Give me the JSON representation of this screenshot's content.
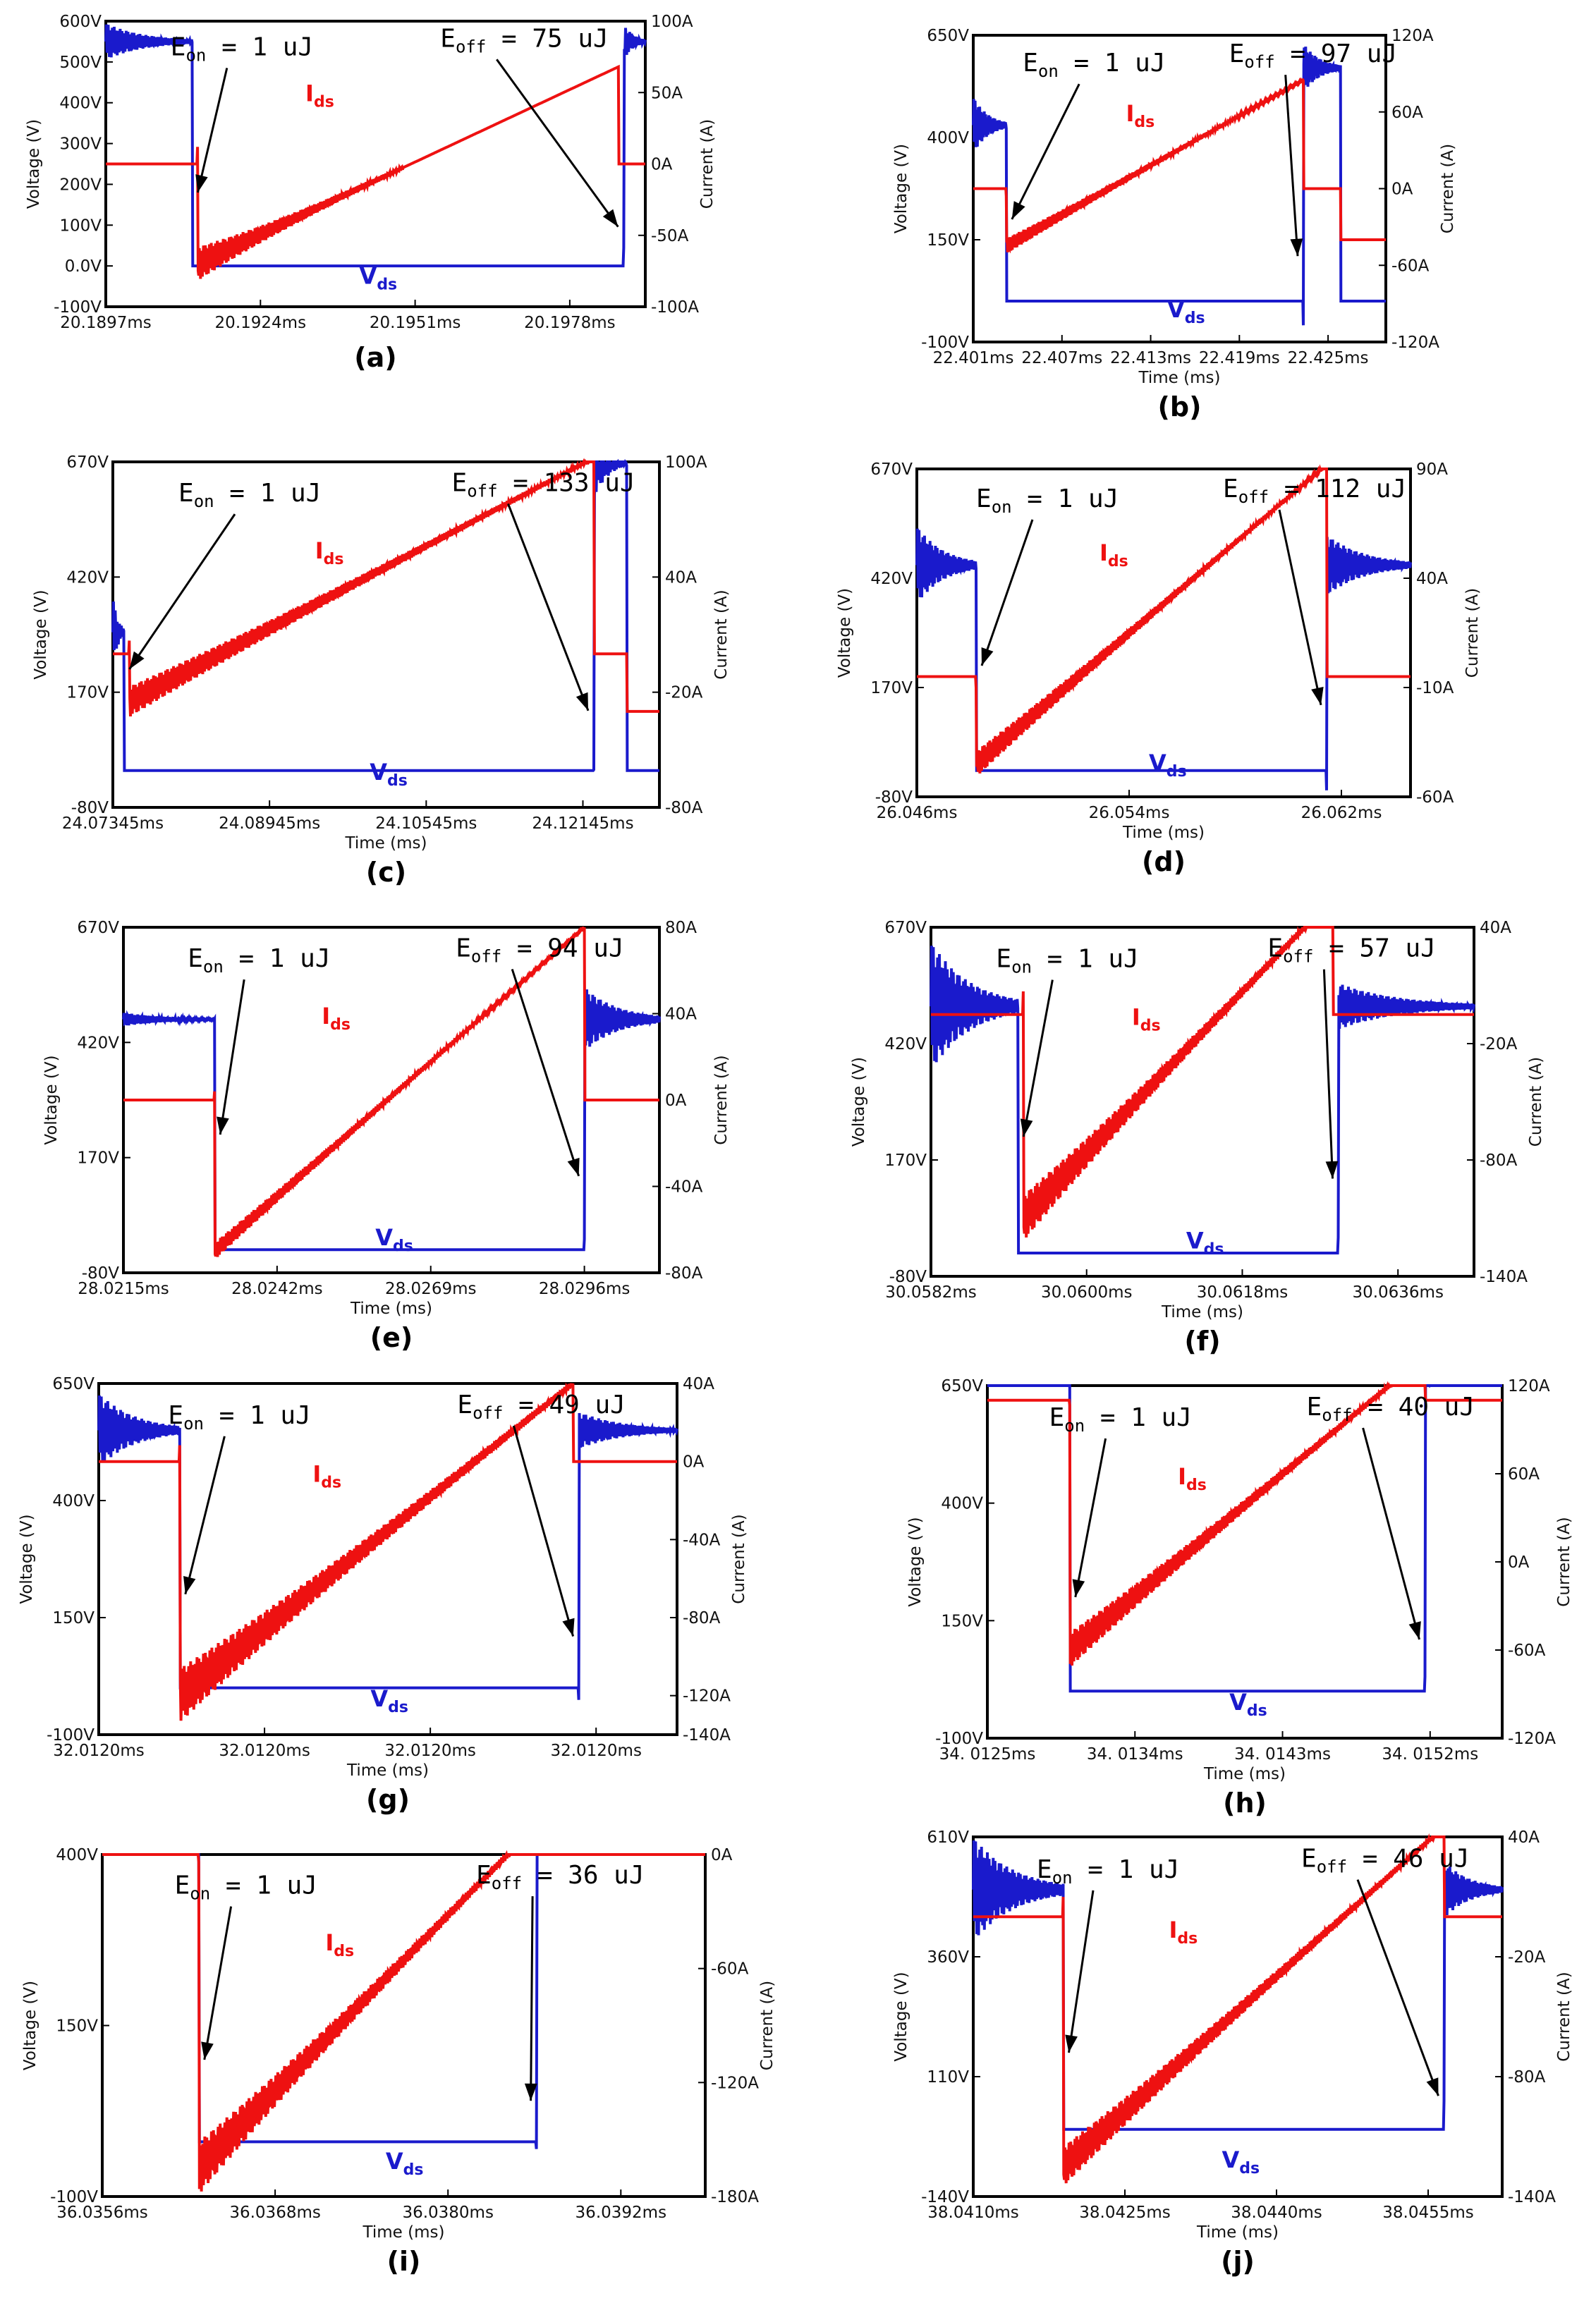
{
  "chart_data": [
    {
      "id": "a",
      "type": "line",
      "panel_label": "(a)",
      "xlabel": "",
      "ylabel": "Voltage (V)",
      "y2label": "Current (A)",
      "xticks": [
        "20.1897ms",
        "20.1924ms",
        "20.1951ms",
        "20.1978ms"
      ],
      "yticks": [
        "600V",
        "500V",
        "400V",
        "300V",
        "200V",
        "100V",
        "0.0V",
        "-100V"
      ],
      "y2ticks": [
        "100A",
        "50A",
        "0A",
        "-50A",
        "-100A"
      ],
      "eon": "1 uJ",
      "eoff": "75 uJ",
      "series": [
        {
          "name": "Vds",
          "color": "#1a1acc",
          "x": [
            0,
            0.16,
            0.16,
            0.96,
            0.96,
            1.0
          ],
          "y": [
            550,
            550,
            0,
            0,
            550,
            550
          ],
          "osc_zones": [
            [
              0,
              0.16,
              45
            ],
            [
              0.96,
              1.0,
              45
            ]
          ]
        },
        {
          "name": "Ids",
          "color": "#ee1111",
          "x": [
            0,
            0.17,
            0.17,
            0.95,
            0.95,
            1.0
          ],
          "y": [
            0,
            0,
            -70,
            68,
            0,
            0
          ],
          "osc_zones": [
            [
              0.17,
              0.55,
              12
            ]
          ]
        }
      ]
    },
    {
      "id": "b",
      "type": "line",
      "panel_label": "(b)",
      "xlabel": "Time (ms)",
      "ylabel": "Voltage (V)",
      "y2label": "Current (A)",
      "xticks": [
        "22.401ms",
        "22.407ms",
        "22.413ms",
        "22.419ms",
        "22.425ms"
      ],
      "yticks": [
        "650V",
        "400V",
        "150V",
        "-100V"
      ],
      "y2ticks": [
        "120A",
        "60A",
        "0A",
        "-60A",
        "-120A"
      ],
      "eon": "1 uJ",
      "eoff": "97 uJ",
      "series": [
        {
          "name": "Vds",
          "color": "#1a1acc",
          "x": [
            0,
            0.08,
            0.08,
            0.8,
            0.8,
            0.89,
            0.89,
            1.0
          ],
          "y": [
            430,
            430,
            0,
            0,
            570,
            570,
            0,
            0
          ],
          "osc_zones": [
            [
              0,
              0.08,
              70
            ],
            [
              0.8,
              0.89,
              60
            ]
          ]
        },
        {
          "name": "Ids",
          "color": "#ee1111",
          "x": [
            0,
            0.08,
            0.08,
            0.8,
            0.8,
            0.89,
            0.89,
            1.0
          ],
          "y": [
            0,
            0,
            -45,
            85,
            0,
            0,
            -40,
            -40
          ],
          "osc_zones": [
            [
              0.08,
              0.8,
              6
            ]
          ]
        }
      ]
    },
    {
      "id": "c",
      "type": "line",
      "panel_label": "(c)",
      "xlabel": "Time (ms)",
      "ylabel": "Voltage (V)",
      "y2label": "Current (A)",
      "xticks": [
        "24.07345ms",
        "24.08945ms",
        "24.10545ms",
        "24.12145ms"
      ],
      "yticks": [
        "670V",
        "420V",
        "170V",
        "-80V"
      ],
      "y2ticks": [
        "100A",
        "40A",
        "-20A",
        "-80A"
      ],
      "eon": "1 uJ",
      "eoff": "133 uJ",
      "series": [
        {
          "name": "Vds",
          "color": "#1a1acc",
          "x": [
            0,
            0.02,
            0.02,
            0.88,
            0.88,
            0.94,
            0.94,
            1.0
          ],
          "y": [
            300,
            300,
            0,
            0,
            670,
            670,
            0,
            0
          ],
          "osc_zones": [
            [
              0,
              0.02,
              80
            ],
            [
              0.88,
              0.94,
              80
            ]
          ]
        },
        {
          "name": "Ids",
          "color": "#ee1111",
          "x": [
            0,
            0.03,
            0.03,
            0.88,
            0.88,
            0.94,
            0.94,
            1.0
          ],
          "y": [
            0,
            0,
            -25,
            102,
            0,
            0,
            -30,
            -30
          ],
          "osc_zones": [
            [
              0.03,
              0.88,
              8
            ]
          ]
        }
      ]
    },
    {
      "id": "d",
      "type": "line",
      "panel_label": "(d)",
      "xlabel": "Time (ms)",
      "ylabel": "Voltage (V)",
      "y2label": "Current (A)",
      "xticks": [
        "26.046ms",
        "26.054ms",
        "26.062ms"
      ],
      "yticks": [
        "670V",
        "420V",
        "170V",
        "-80V"
      ],
      "y2ticks": [
        "90A",
        "40A",
        "-10A",
        "-60A"
      ],
      "eon": "1 uJ",
      "eoff": "112 uJ",
      "series": [
        {
          "name": "Vds",
          "color": "#1a1acc",
          "x": [
            0,
            0.12,
            0.12,
            0.83,
            0.83,
            1.0
          ],
          "y": [
            450,
            450,
            -20,
            -20,
            450,
            450
          ],
          "osc_zones": [
            [
              0,
              0.12,
              90
            ],
            [
              0.83,
              1.0,
              70
            ]
          ]
        },
        {
          "name": "Ids",
          "color": "#ee1111",
          "x": [
            0,
            0.12,
            0.12,
            0.83,
            0.83,
            1.0
          ],
          "y": [
            -5,
            -5,
            -45,
            92,
            -5,
            -5
          ],
          "osc_zones": [
            [
              0.12,
              0.83,
              6
            ]
          ]
        }
      ]
    },
    {
      "id": "e",
      "type": "line",
      "panel_label": "(e)",
      "xlabel": "Time (ms)",
      "ylabel": "Voltage (V)",
      "y2label": "Current (A)",
      "xticks": [
        "28.0215ms",
        "28.0242ms",
        "28.0269ms",
        "28.0296ms"
      ],
      "yticks": [
        "670V",
        "420V",
        "170V",
        "-80V"
      ],
      "y2ticks": [
        "80A",
        "40A",
        "0A",
        "-40A",
        "-80A"
      ],
      "eon": "1 uJ",
      "eoff": "94 uJ",
      "series": [
        {
          "name": "Vds",
          "color": "#1a1acc",
          "x": [
            0,
            0.17,
            0.17,
            0.86,
            0.86,
            1.0
          ],
          "y": [
            470,
            470,
            -30,
            -30,
            470,
            470
          ],
          "osc_zones": [
            [
              0,
              0.17,
              15
            ],
            [
              0.86,
              1.0,
              70
            ]
          ]
        },
        {
          "name": "Ids",
          "color": "#ee1111",
          "x": [
            0,
            0.17,
            0.17,
            0.86,
            0.86,
            1.0
          ],
          "y": [
            0,
            0,
            -70,
            80,
            0,
            0
          ],
          "osc_zones": [
            [
              0.17,
              0.86,
              4
            ]
          ]
        }
      ]
    },
    {
      "id": "f",
      "type": "line",
      "panel_label": "(f)",
      "xlabel": "Time (ms)",
      "ylabel": "Voltage (V)",
      "y2label": "Current (A)",
      "xticks": [
        "30.0582ms",
        "30.0600ms",
        "30.0618ms",
        "30.0636ms"
      ],
      "yticks": [
        "670V",
        "420V",
        "170V",
        "-80V"
      ],
      "y2ticks": [
        "40A",
        "-20A",
        "-80A",
        "-140A"
      ],
      "eon": "1 uJ",
      "eoff": "57 uJ",
      "series": [
        {
          "name": "Vds",
          "color": "#1a1acc",
          "x": [
            0,
            0.16,
            0.16,
            0.75,
            0.75,
            1.0
          ],
          "y": [
            500,
            500,
            -30,
            -30,
            500,
            500
          ],
          "osc_zones": [
            [
              0,
              0.16,
              140
            ],
            [
              0.75,
              1.0,
              50
            ]
          ]
        },
        {
          "name": "Ids",
          "color": "#ee1111",
          "x": [
            0,
            0.17,
            0.17,
            0.74,
            0.74,
            1.0
          ],
          "y": [
            -5,
            -5,
            -110,
            55,
            -5,
            -5
          ],
          "osc_zones": [
            [
              0.17,
              0.74,
              12
            ]
          ]
        }
      ]
    },
    {
      "id": "g",
      "type": "line",
      "panel_label": "(g)",
      "xlabel": "Time (ms)",
      "ylabel": "Voltage (V)",
      "y2label": "Current (A)",
      "xticks": [
        "32.0120ms",
        "32.0120ms",
        "32.0120ms",
        "32.0120ms"
      ],
      "yticks": [
        "650V",
        "400V",
        "150V",
        "-100V"
      ],
      "y2ticks": [
        "40A",
        "0A",
        "-40A",
        "-80A",
        "-120A",
        "-140A"
      ],
      "eon": "1 uJ",
      "eoff": "49 uJ",
      "series": [
        {
          "name": "Vds",
          "color": "#1a1acc",
          "x": [
            0,
            0.14,
            0.14,
            0.83,
            0.83,
            1.0
          ],
          "y": [
            550,
            550,
            0,
            0,
            550,
            550
          ],
          "osc_zones": [
            [
              0,
              0.14,
              80
            ],
            [
              0.83,
              1.0,
              40
            ]
          ]
        },
        {
          "name": "Ids",
          "color": "#ee1111",
          "x": [
            0,
            0.14,
            0.14,
            0.82,
            0.82,
            1.0
          ],
          "y": [
            0,
            0,
            -120,
            40,
            0,
            0
          ],
          "osc_zones": [
            [
              0.14,
              0.82,
              14
            ]
          ]
        }
      ]
    },
    {
      "id": "h",
      "type": "line",
      "panel_label": "(h)",
      "xlabel": "Time (ms)",
      "ylabel": "Voltage (V)",
      "y2label": "Current (A)",
      "xticks": [
        "34. 0125ms",
        "34. 0134ms",
        "34. 0143ms",
        "34. 0152ms"
      ],
      "yticks": [
        "650V",
        "400V",
        "150V",
        "-100V"
      ],
      "y2ticks": [
        "120A",
        "60A",
        "0A",
        "-60A",
        "-120A"
      ],
      "eon": "1 uJ",
      "eoff": "40 uJ",
      "series": [
        {
          "name": "Vds",
          "color": "#1a1acc",
          "x": [
            0,
            0.16,
            0.16,
            0.85,
            0.85,
            1.0
          ],
          "y": [
            680,
            680,
            0,
            0,
            680,
            680
          ],
          "osc_zones": [
            [
              0,
              0.16,
              20
            ],
            [
              0.85,
              1.0,
              35
            ]
          ]
        },
        {
          "name": "Ids",
          "color": "#ee1111",
          "x": [
            0,
            0.16,
            0.16,
            0.85,
            0.85,
            1.0
          ],
          "y": [
            110,
            110,
            -60,
            140,
            110,
            110
          ],
          "osc_zones": [
            [
              0.16,
              0.85,
              12
            ]
          ]
        }
      ]
    },
    {
      "id": "i",
      "type": "line",
      "panel_label": "(i)",
      "xlabel": "Time (ms)",
      "ylabel": "Voltage (V)",
      "y2label": "Current (A)",
      "xticks": [
        "36.0356ms",
        "36.0368ms",
        "36.0380ms",
        "36.0392ms"
      ],
      "yticks": [
        "400V",
        "150V",
        "-100V"
      ],
      "y2ticks": [
        "0A",
        "-60A",
        "-120A",
        "-180A"
      ],
      "eon": "1 uJ",
      "eoff": "36 uJ",
      "series": [
        {
          "name": "Vds",
          "color": "#1a1acc",
          "x": [
            0,
            0.16,
            0.16,
            0.72,
            0.72,
            1.0
          ],
          "y": [
            570,
            570,
            -20,
            -20,
            570,
            570
          ],
          "osc_zones": [
            [
              0,
              0.16,
              40
            ],
            [
              0.72,
              1.0,
              35
            ]
          ]
        },
        {
          "name": "Ids",
          "color": "#ee1111",
          "x": [
            0,
            0.16,
            0.16,
            0.71,
            0.71,
            1.0
          ],
          "y": [
            0,
            0,
            -165,
            12,
            0,
            0
          ],
          "osc_zones": [
            [
              0.16,
              0.71,
              14
            ]
          ]
        }
      ]
    },
    {
      "id": "j",
      "type": "line",
      "panel_label": "(j)",
      "xlabel": "Time (ms)",
      "ylabel": "Voltage (V)",
      "y2label": "Current (A)",
      "xticks": [
        "38.0410ms",
        "38.0425ms",
        "38.0440ms",
        "38.0455ms"
      ],
      "yticks": [
        "610V",
        "360V",
        "110V",
        "-140V"
      ],
      "y2ticks": [
        "40A",
        "-20A",
        "-80A",
        "-140A"
      ],
      "eon": "1 uJ",
      "eoff": "46 uJ",
      "series": [
        {
          "name": "Vds",
          "color": "#1a1acc",
          "x": [
            0,
            0.17,
            0.17,
            0.89,
            0.89,
            1.0
          ],
          "y": [
            500,
            500,
            0,
            0,
            500,
            500
          ],
          "osc_zones": [
            [
              0,
              0.17,
              110
            ],
            [
              0.89,
              1.0,
              60
            ]
          ]
        },
        {
          "name": "Ids",
          "color": "#ee1111",
          "x": [
            0,
            0.17,
            0.17,
            0.89,
            0.89,
            1.0
          ],
          "y": [
            0,
            0,
            -125,
            45,
            0,
            0
          ],
          "osc_zones": [
            [
              0.17,
              0.89,
              10
            ]
          ]
        }
      ]
    }
  ]
}
